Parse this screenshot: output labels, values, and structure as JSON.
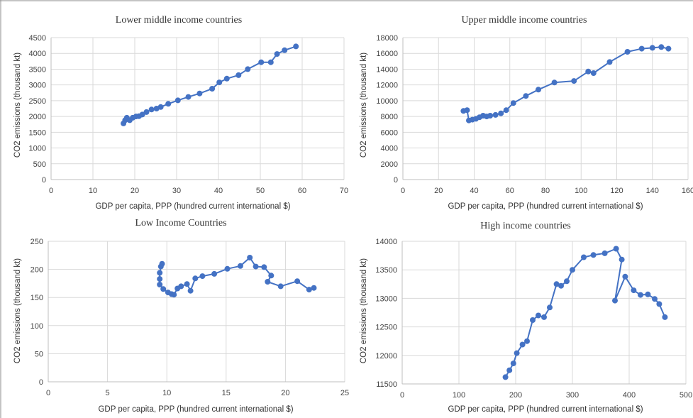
{
  "series_color": "#4472c4",
  "chart_data": [
    {
      "type": "line",
      "title": "Lower middle income countries",
      "xlabel": "GDP per capita, PPP (hundred current international $)",
      "ylabel": "CO2 emissions (thousand kt)",
      "xlim": [
        0,
        70
      ],
      "ylim": [
        0,
        4500
      ],
      "xticks": [
        0,
        10,
        20,
        30,
        40,
        50,
        60,
        70
      ],
      "yticks": [
        0,
        500,
        1000,
        1500,
        2000,
        2500,
        3000,
        3500,
        4000,
        4500
      ],
      "grid": true,
      "x": [
        17.3,
        17.7,
        18.1,
        18.8,
        19.5,
        20.3,
        21.0,
        21.8,
        22.8,
        24.0,
        25.2,
        26.2,
        28.0,
        30.3,
        32.8,
        35.5,
        38.5,
        40.2,
        42.0,
        44.8,
        47.0,
        50.2,
        52.5,
        54.0,
        55.8,
        58.5
      ],
      "y": [
        1780,
        1880,
        1960,
        1880,
        1960,
        2000,
        2010,
        2060,
        2140,
        2220,
        2250,
        2300,
        2400,
        2510,
        2620,
        2730,
        2880,
        3080,
        3200,
        3310,
        3500,
        3720,
        3720,
        3980,
        4100,
        4220
      ]
    },
    {
      "type": "line",
      "title": "Upper middle income countries",
      "xlabel": "GDP per capita, PPP (hundred current international $)",
      "ylabel": "CO2 emissions (thousand kt)",
      "xlim": [
        0,
        160
      ],
      "ylim": [
        0,
        18000
      ],
      "xticks": [
        0,
        20,
        40,
        60,
        80,
        100,
        120,
        140,
        160
      ],
      "yticks": [
        0,
        2000,
        4000,
        6000,
        8000,
        10000,
        12000,
        14000,
        16000,
        18000
      ],
      "grid": true,
      "x": [
        34,
        36,
        37,
        39,
        41,
        43,
        45,
        47,
        49,
        52,
        55,
        58,
        62,
        69,
        76,
        85,
        96,
        104,
        107,
        116,
        126,
        134,
        140,
        145,
        149
      ],
      "y": [
        8700,
        8800,
        7500,
        7600,
        7700,
        7900,
        8100,
        8000,
        8100,
        8200,
        8400,
        8800,
        9700,
        10600,
        11400,
        12300,
        12500,
        13700,
        13500,
        14900,
        16200,
        16600,
        16700,
        16800,
        16600
      ]
    },
    {
      "type": "line",
      "title": "Low Income Countries",
      "xlabel": "GDP per capita, PPP (hundred current international $)",
      "ylabel": "CO2 emissions (thousand kt)",
      "xlim": [
        0,
        25
      ],
      "ylim": [
        0,
        250
      ],
      "xticks": [
        0,
        5,
        10,
        15,
        20,
        25
      ],
      "yticks": [
        0,
        50,
        100,
        150,
        200,
        250
      ],
      "grid": true,
      "x": [
        9.6,
        9.5,
        9.4,
        9.4,
        9.4,
        9.7,
        10.1,
        10.4,
        10.6,
        10.9,
        11.2,
        11.7,
        12.0,
        12.4,
        13.0,
        14.0,
        15.1,
        16.2,
        17.0,
        17.5,
        18.2,
        18.8,
        18.5,
        19.6,
        21.0,
        22.0,
        22.4
      ],
      "y": [
        210,
        205,
        194,
        183,
        173,
        165,
        159,
        156,
        155,
        166,
        170,
        174,
        162,
        184,
        188,
        192,
        201,
        206,
        221,
        205,
        204,
        189,
        178,
        170,
        179,
        164,
        167
      ]
    },
    {
      "type": "line",
      "title": "High income countries",
      "xlabel": "GDP per capita, PPP (hundred current international $)",
      "ylabel": "CO2 emissions (thousand kt)",
      "xlim": [
        0,
        500
      ],
      "ylim": [
        11500,
        14000
      ],
      "xticks": [
        0,
        100,
        200,
        300,
        400,
        500
      ],
      "yticks": [
        11500,
        12000,
        12500,
        13000,
        13500,
        14000
      ],
      "grid": true,
      "x": [
        182,
        189,
        196,
        202,
        212,
        220,
        230,
        240,
        250,
        260,
        272,
        280,
        290,
        300,
        320,
        337,
        357,
        377,
        387,
        375,
        393,
        408,
        420,
        433,
        445,
        453,
        463
      ],
      "y": [
        11620,
        11740,
        11860,
        12040,
        12190,
        12250,
        12620,
        12700,
        12670,
        12840,
        13250,
        13220,
        13300,
        13500,
        13720,
        13760,
        13790,
        13870,
        13680,
        12960,
        13380,
        13140,
        13060,
        13070,
        12990,
        12900,
        12670
      ]
    }
  ]
}
